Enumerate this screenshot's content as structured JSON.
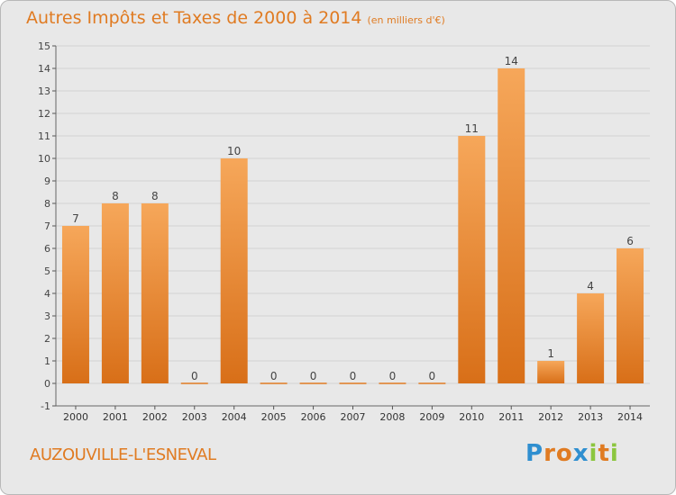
{
  "chart_data": {
    "type": "bar",
    "title": "Autres Impôts et Taxes de 2000 à 2014",
    "unit_label": "(en milliers d'€)",
    "categories": [
      "2000",
      "2001",
      "2002",
      "2003",
      "2004",
      "2005",
      "2006",
      "2007",
      "2008",
      "2009",
      "2010",
      "2011",
      "2012",
      "2013",
      "2014"
    ],
    "values": [
      7,
      8,
      8,
      0,
      10,
      0,
      0,
      0,
      0,
      0,
      11,
      14,
      1,
      4,
      6
    ],
    "ylim": [
      -1,
      15
    ],
    "yticks": [
      -1,
      0,
      1,
      2,
      3,
      4,
      5,
      6,
      7,
      8,
      9,
      10,
      11,
      12,
      13,
      14,
      15
    ],
    "grid": true,
    "xlabel": "",
    "ylabel": "",
    "bar_color": "#e8822a"
  },
  "commune": "AUZOUVILLE-L'ESNEVAL",
  "logo": {
    "letters": [
      "P",
      "r",
      "o",
      "x",
      "i",
      "t",
      "i"
    ],
    "colors": [
      "#2f8fd0",
      "#e07b22",
      "#e07b22",
      "#2f8fd0",
      "#8cc63f",
      "#e07b22",
      "#8cc63f"
    ]
  }
}
